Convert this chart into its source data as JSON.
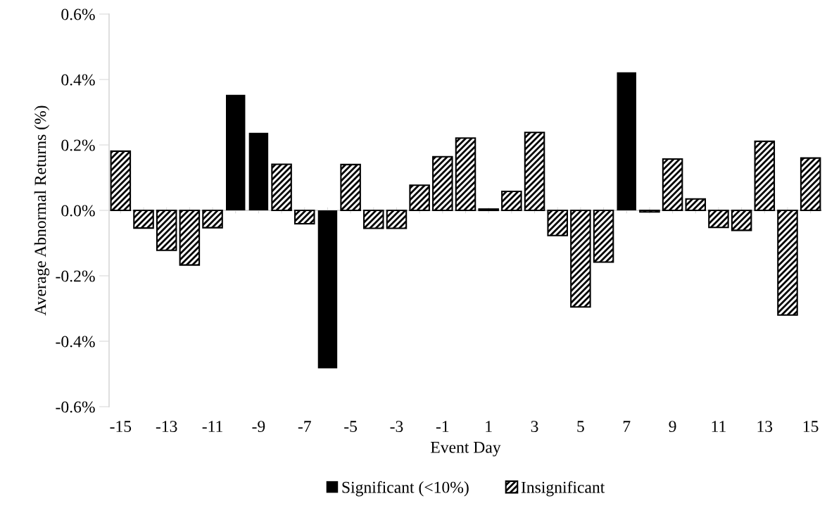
{
  "chart_data": {
    "type": "bar",
    "xlabel": "Event Day",
    "ylabel": "Average Abnormal Returns (%)",
    "categories": [
      "-15",
      null,
      "-13",
      null,
      "-11",
      null,
      "-9",
      null,
      "-7",
      null,
      "-5",
      null,
      "-3",
      null,
      "-1",
      null,
      "1",
      null,
      "3",
      null,
      "5",
      null,
      "7",
      null,
      "9",
      null,
      "11",
      null,
      "13",
      null,
      "15"
    ],
    "series": [
      {
        "name": "Significant (<10%)",
        "color": "#000000",
        "values": [
          null,
          null,
          null,
          null,
          null,
          0.353,
          0.237,
          null,
          null,
          -0.483,
          null,
          null,
          null,
          null,
          null,
          null,
          null,
          null,
          null,
          null,
          null,
          null,
          0.422,
          null,
          null,
          null,
          null,
          null,
          null,
          null,
          null
        ]
      },
      {
        "name": "Insignificant",
        "color": "#000000",
        "values": [
          0.181,
          -0.054,
          -0.122,
          -0.167,
          -0.053,
          null,
          null,
          0.141,
          -0.041,
          null,
          0.14,
          -0.055,
          -0.055,
          0.077,
          0.164,
          0.221,
          0.004,
          0.058,
          0.238,
          -0.077,
          -0.295,
          -0.158,
          null,
          -0.005,
          0.157,
          0.035,
          -0.052,
          -0.061,
          0.211,
          -0.32,
          0.16
        ]
      }
    ],
    "ylim": [
      -0.6,
      0.6
    ],
    "yticks": [
      {
        "value": -0.6,
        "label": "-0.6%"
      },
      {
        "value": -0.4,
        "label": "-0.4%"
      },
      {
        "value": -0.2,
        "label": "-0.2%"
      },
      {
        "value": 0,
        "label": "0.0%"
      },
      {
        "value": 0.2,
        "label": "0.2%"
      },
      {
        "value": 0.4,
        "label": "0.4%"
      },
      {
        "value": 0.6,
        "label": "0.6%"
      }
    ],
    "ref_lines": [
      {
        "axis": "y",
        "value": 0,
        "color": "#d9d9d9"
      }
    ],
    "grid": false,
    "legend": "bottom"
  }
}
